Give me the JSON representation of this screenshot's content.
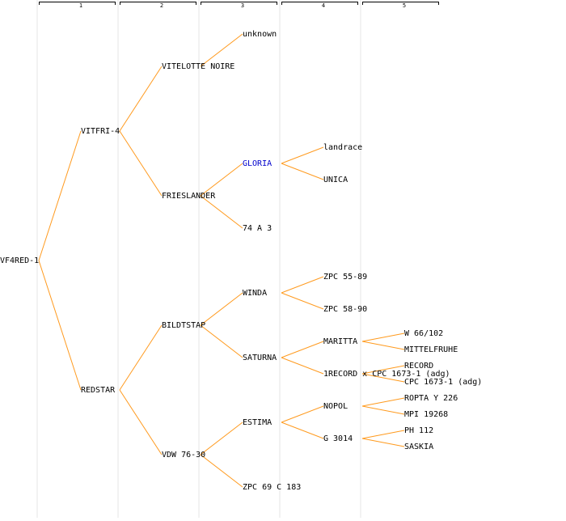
{
  "columns": [
    "1",
    "2",
    "3",
    "4",
    "5"
  ],
  "tree": {
    "label": "VF4RED-1",
    "children": [
      {
        "label": "VITFRI-4",
        "children": [
          {
            "label": "VITELOTTE NOIRE",
            "children": [
              {
                "label": "unknown"
              }
            ]
          },
          {
            "label": "FRIESLANDER",
            "children": [
              {
                "label": "GLORIA",
                "children": [
                  {
                    "label": "landrace"
                  },
                  {
                    "label": "UNICA"
                  }
                ]
              },
              {
                "label": "74 A 3"
              }
            ]
          }
        ]
      },
      {
        "label": "REDSTAR",
        "children": [
          {
            "label": "BILDTSTAP",
            "children": [
              {
                "label": "WINDA",
                "children": [
                  {
                    "label": "ZPC 55-89"
                  },
                  {
                    "label": "ZPC 58-90"
                  }
                ]
              },
              {
                "label": "SATURNA",
                "children": [
                  {
                    "label": "MARITTA",
                    "children": [
                      {
                        "label": "W 66/102"
                      },
                      {
                        "label": "MITTELFRUHE"
                      }
                    ]
                  },
                  {
                    "label": "1RECORD x CPC 1673-1 (adg)",
                    "children": [
                      {
                        "label": "RECORD"
                      },
                      {
                        "label": "CPC 1673-1 (adg)"
                      }
                    ]
                  }
                ]
              }
            ]
          },
          {
            "label": "VDW 76-30",
            "children": [
              {
                "label": "ESTIMA",
                "children": [
                  {
                    "label": "NOPOL",
                    "children": [
                      {
                        "label": "ROPTA Y 226"
                      },
                      {
                        "label": "MPI 19268"
                      }
                    ]
                  },
                  {
                    "label": "G 3014",
                    "children": [
                      {
                        "label": "PH 112"
                      },
                      {
                        "label": "SASKIA"
                      }
                    ]
                  }
                ]
              },
              {
                "label": "ZPC 69 C 183"
              }
            ]
          }
        ]
      }
    ]
  }
}
